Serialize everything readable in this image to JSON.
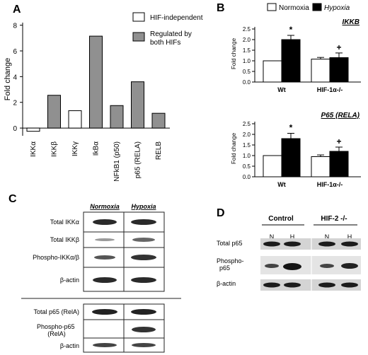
{
  "panel_labels": {
    "a": "A",
    "b": "B",
    "c": "C",
    "d": "D"
  },
  "colors": {
    "hif_independent": "#ffffff",
    "regulated_both": "#909090",
    "normoxia": "#ffffff",
    "hypoxia": "#000000"
  },
  "chart_data": [
    {
      "type": "bar",
      "ylabel": "Fold change",
      "ylim": [
        -0.6,
        8.2
      ],
      "y_ticks": [
        0,
        2,
        4,
        6,
        8
      ],
      "categories": [
        "IKKα",
        "IKKβ",
        "IKKγ",
        "IkBα",
        "NFkB1 (p50)",
        "p65 (RELA)",
        "RELB"
      ],
      "values": [
        -0.25,
        2.55,
        1.35,
        7.15,
        1.75,
        3.6,
        1.15
      ],
      "groups": [
        "HIF-independent",
        "Regulated by both HIFs",
        "HIF-independent",
        "Regulated by both HIFs",
        "Regulated by both HIFs",
        "Regulated by both HIFs",
        "Regulated by both HIFs"
      ],
      "legend": [
        "HIF-independent",
        "Regulated by both HIFs"
      ],
      "legend_position": "top-right",
      "grid": false
    },
    {
      "type": "bar",
      "title": "IKKB",
      "ylabel": "Fold change",
      "ylim": [
        0,
        2.5
      ],
      "y_ticks": [
        0.0,
        0.5,
        1.0,
        1.5,
        2.0,
        2.5
      ],
      "categories": [
        "Wt",
        "HIF-1α-/-"
      ],
      "series": [
        {
          "name": "Normoxia",
          "values": [
            1.0,
            1.08
          ],
          "errors": [
            0,
            0.08
          ]
        },
        {
          "name": "Hypoxia",
          "values": [
            2.0,
            1.15
          ],
          "errors": [
            0.2,
            0.22
          ]
        }
      ],
      "annotations": [
        "*",
        "+"
      ],
      "legend_position": "top",
      "grid": false
    },
    {
      "type": "bar",
      "title": "P65 (RELA)",
      "ylabel": "Fold change",
      "ylim": [
        0,
        2.5
      ],
      "y_ticks": [
        0.0,
        0.5,
        1.0,
        1.5,
        2.0,
        2.5
      ],
      "categories": [
        "Wt",
        "HIF-1α-/-"
      ],
      "series": [
        {
          "name": "Normoxia",
          "values": [
            1.0,
            0.95
          ],
          "errors": [
            0,
            0.08
          ]
        },
        {
          "name": "Hypoxia",
          "values": [
            1.8,
            1.2
          ],
          "errors": [
            0.25,
            0.2
          ]
        }
      ],
      "annotations": [
        "*",
        "+"
      ],
      "grid": false
    }
  ],
  "blot_c": {
    "col_headers": [
      "Normoxia",
      "Hypoxia"
    ],
    "rows_top": [
      "Total IKKα",
      "Total IKKβ",
      "Phospho-IKKα/β",
      "β-actin"
    ],
    "rows_bottom": [
      "Total p65 (RelA)",
      "Phospho-p65 (RelA)",
      "β-actin"
    ],
    "phospho_p65_line1": "Phospho-p65",
    "phospho_p65_line2": "(RelA)"
  },
  "blot_d": {
    "group_headers": [
      "Control",
      "HIF-2 -/-"
    ],
    "lanes": [
      "N",
      "H",
      "N",
      "H"
    ],
    "rows": [
      "Total p65",
      "Phospho-p65",
      "β-actin"
    ],
    "phospho_line1": "Phospho-",
    "phospho_line2": "p65"
  }
}
